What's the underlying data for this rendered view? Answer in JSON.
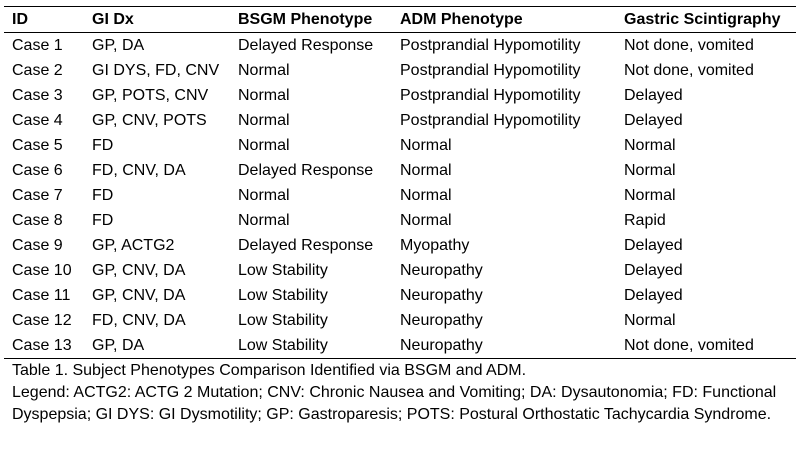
{
  "table": {
    "headers": [
      "ID",
      "GI Dx",
      "BSGM Phenotype",
      "ADM Phenotype",
      "Gastric Scintigraphy"
    ],
    "rows": [
      [
        "Case 1",
        "GP, DA",
        "Delayed Response",
        "Postprandial Hypomotility",
        "Not done, vomited"
      ],
      [
        "Case 2",
        "GI DYS, FD, CNV",
        "Normal",
        "Postprandial Hypomotility",
        "Not done, vomited"
      ],
      [
        "Case 3",
        "GP, POTS, CNV",
        "Normal",
        "Postprandial Hypomotility",
        "Delayed"
      ],
      [
        "Case 4",
        "GP, CNV, POTS",
        "Normal",
        "Postprandial Hypomotility",
        "Delayed"
      ],
      [
        "Case 5",
        "FD",
        "Normal",
        "Normal",
        "Normal"
      ],
      [
        "Case 6",
        "FD, CNV, DA",
        "Delayed Response",
        "Normal",
        "Normal"
      ],
      [
        "Case 7",
        "FD",
        "Normal",
        "Normal",
        "Normal"
      ],
      [
        "Case 8",
        "FD",
        "Normal",
        "Normal",
        "Rapid"
      ],
      [
        "Case 9",
        "GP, ACTG2",
        "Delayed Response",
        "Myopathy",
        "Delayed"
      ],
      [
        "Case 10",
        "GP, CNV, DA",
        "Low Stability",
        "Neuropathy",
        "Delayed"
      ],
      [
        "Case 11",
        "GP, CNV, DA",
        "Low Stability",
        "Neuropathy",
        "Delayed"
      ],
      [
        "Case 12",
        "FD, CNV, DA",
        "Low Stability",
        "Neuropathy",
        "Normal"
      ],
      [
        "Case 13",
        "GP, DA",
        "Low Stability",
        "Neuropathy",
        "Not done, vomited"
      ]
    ]
  },
  "caption": {
    "title": "Table 1. Subject Phenotypes Comparison Identified via BSGM and ADM.",
    "legend": "Legend: ACTG2: ACTG 2 Mutation; CNV: Chronic Nausea and Vomiting; DA: Dysautonomia; FD: Functional Dyspepsia; GI DYS: GI Dysmotility; GP: Gastroparesis; POTS: Postural Orthostatic Tachycardia Syndrome."
  }
}
